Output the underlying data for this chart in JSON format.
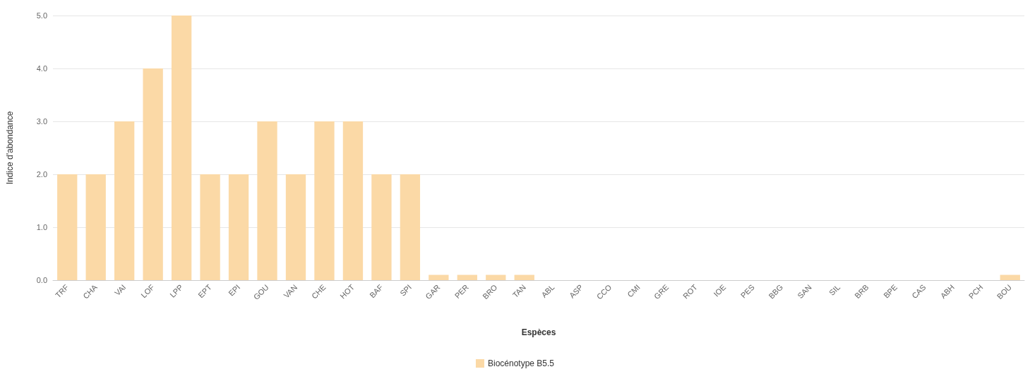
{
  "chart_data": {
    "type": "bar",
    "xlabel": "Espèces",
    "ylabel": "Indice d'abondance",
    "categories": [
      "TRF",
      "CHA",
      "VAI",
      "LOF",
      "LPP",
      "EPT",
      "EPI",
      "GOU",
      "VAN",
      "CHE",
      "HOT",
      "BAF",
      "SPI",
      "GAR",
      "PER",
      "BRO",
      "TAN",
      "ABL",
      "ASP",
      "CCO",
      "CMI",
      "GRE",
      "ROT",
      "IOE",
      "PES",
      "BBG",
      "SAN",
      "SIL",
      "BRB",
      "BPE",
      "CAS",
      "ABH",
      "PCH",
      "BOU"
    ],
    "series": [
      {
        "name": "Biocénotype B5.5",
        "color": "#fbd9a6",
        "values": [
          2,
          2,
          3,
          4,
          5,
          2,
          2,
          3,
          2,
          3,
          3,
          2,
          2,
          0.1,
          0.1,
          0.1,
          0.1,
          0,
          0,
          0,
          0,
          0,
          0,
          0,
          0,
          0,
          0,
          0,
          0,
          0,
          0,
          0,
          0,
          0.1
        ]
      }
    ],
    "ylim": [
      0,
      5
    ],
    "yticks": [
      {
        "value": 0,
        "label": "0.0"
      },
      {
        "value": 1,
        "label": "1.0"
      },
      {
        "value": 2,
        "label": "2.0"
      },
      {
        "value": 3,
        "label": "3.0"
      },
      {
        "value": 4,
        "label": "4.0"
      },
      {
        "value": 5,
        "label": "5.0"
      }
    ],
    "grid": "y",
    "legend": "bottom"
  }
}
